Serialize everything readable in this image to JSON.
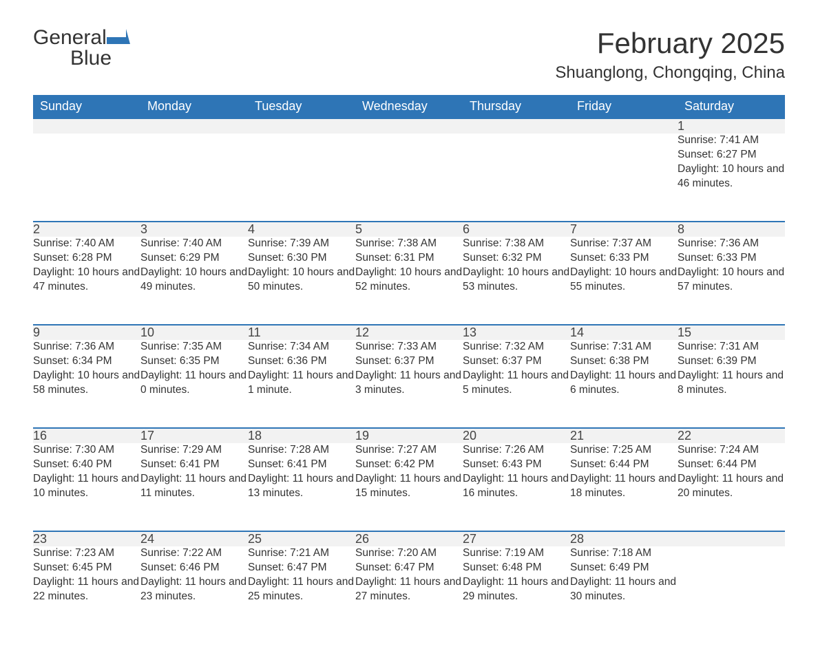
{
  "logo": {
    "text1": "General",
    "text2": "Blue"
  },
  "title": "February 2025",
  "subtitle": "Shuanglong, Chongqing, China",
  "colors": {
    "accent": "#2e75b6",
    "header_text": "#ffffff",
    "daynum_bg": "#f2f2f2",
    "body_text": "#333333",
    "page_bg": "#ffffff"
  },
  "layout": {
    "columns": 7,
    "rows": 5,
    "font_family": "Segoe UI, Arial, sans-serif",
    "title_fontsize": 42,
    "subtitle_fontsize": 24,
    "header_fontsize": 18,
    "daynum_fontsize": 18,
    "cell_fontsize": 15.5
  },
  "day_headers": [
    "Sunday",
    "Monday",
    "Tuesday",
    "Wednesday",
    "Thursday",
    "Friday",
    "Saturday"
  ],
  "weeks": [
    [
      null,
      null,
      null,
      null,
      null,
      null,
      {
        "day": "1",
        "sunrise": "Sunrise: 7:41 AM",
        "sunset": "Sunset: 6:27 PM",
        "daylight": "Daylight: 10 hours and 46 minutes."
      }
    ],
    [
      {
        "day": "2",
        "sunrise": "Sunrise: 7:40 AM",
        "sunset": "Sunset: 6:28 PM",
        "daylight": "Daylight: 10 hours and 47 minutes."
      },
      {
        "day": "3",
        "sunrise": "Sunrise: 7:40 AM",
        "sunset": "Sunset: 6:29 PM",
        "daylight": "Daylight: 10 hours and 49 minutes."
      },
      {
        "day": "4",
        "sunrise": "Sunrise: 7:39 AM",
        "sunset": "Sunset: 6:30 PM",
        "daylight": "Daylight: 10 hours and 50 minutes."
      },
      {
        "day": "5",
        "sunrise": "Sunrise: 7:38 AM",
        "sunset": "Sunset: 6:31 PM",
        "daylight": "Daylight: 10 hours and 52 minutes."
      },
      {
        "day": "6",
        "sunrise": "Sunrise: 7:38 AM",
        "sunset": "Sunset: 6:32 PM",
        "daylight": "Daylight: 10 hours and 53 minutes."
      },
      {
        "day": "7",
        "sunrise": "Sunrise: 7:37 AM",
        "sunset": "Sunset: 6:33 PM",
        "daylight": "Daylight: 10 hours and 55 minutes."
      },
      {
        "day": "8",
        "sunrise": "Sunrise: 7:36 AM",
        "sunset": "Sunset: 6:33 PM",
        "daylight": "Daylight: 10 hours and 57 minutes."
      }
    ],
    [
      {
        "day": "9",
        "sunrise": "Sunrise: 7:36 AM",
        "sunset": "Sunset: 6:34 PM",
        "daylight": "Daylight: 10 hours and 58 minutes."
      },
      {
        "day": "10",
        "sunrise": "Sunrise: 7:35 AM",
        "sunset": "Sunset: 6:35 PM",
        "daylight": "Daylight: 11 hours and 0 minutes."
      },
      {
        "day": "11",
        "sunrise": "Sunrise: 7:34 AM",
        "sunset": "Sunset: 6:36 PM",
        "daylight": "Daylight: 11 hours and 1 minute."
      },
      {
        "day": "12",
        "sunrise": "Sunrise: 7:33 AM",
        "sunset": "Sunset: 6:37 PM",
        "daylight": "Daylight: 11 hours and 3 minutes."
      },
      {
        "day": "13",
        "sunrise": "Sunrise: 7:32 AM",
        "sunset": "Sunset: 6:37 PM",
        "daylight": "Daylight: 11 hours and 5 minutes."
      },
      {
        "day": "14",
        "sunrise": "Sunrise: 7:31 AM",
        "sunset": "Sunset: 6:38 PM",
        "daylight": "Daylight: 11 hours and 6 minutes."
      },
      {
        "day": "15",
        "sunrise": "Sunrise: 7:31 AM",
        "sunset": "Sunset: 6:39 PM",
        "daylight": "Daylight: 11 hours and 8 minutes."
      }
    ],
    [
      {
        "day": "16",
        "sunrise": "Sunrise: 7:30 AM",
        "sunset": "Sunset: 6:40 PM",
        "daylight": "Daylight: 11 hours and 10 minutes."
      },
      {
        "day": "17",
        "sunrise": "Sunrise: 7:29 AM",
        "sunset": "Sunset: 6:41 PM",
        "daylight": "Daylight: 11 hours and 11 minutes."
      },
      {
        "day": "18",
        "sunrise": "Sunrise: 7:28 AM",
        "sunset": "Sunset: 6:41 PM",
        "daylight": "Daylight: 11 hours and 13 minutes."
      },
      {
        "day": "19",
        "sunrise": "Sunrise: 7:27 AM",
        "sunset": "Sunset: 6:42 PM",
        "daylight": "Daylight: 11 hours and 15 minutes."
      },
      {
        "day": "20",
        "sunrise": "Sunrise: 7:26 AM",
        "sunset": "Sunset: 6:43 PM",
        "daylight": "Daylight: 11 hours and 16 minutes."
      },
      {
        "day": "21",
        "sunrise": "Sunrise: 7:25 AM",
        "sunset": "Sunset: 6:44 PM",
        "daylight": "Daylight: 11 hours and 18 minutes."
      },
      {
        "day": "22",
        "sunrise": "Sunrise: 7:24 AM",
        "sunset": "Sunset: 6:44 PM",
        "daylight": "Daylight: 11 hours and 20 minutes."
      }
    ],
    [
      {
        "day": "23",
        "sunrise": "Sunrise: 7:23 AM",
        "sunset": "Sunset: 6:45 PM",
        "daylight": "Daylight: 11 hours and 22 minutes."
      },
      {
        "day": "24",
        "sunrise": "Sunrise: 7:22 AM",
        "sunset": "Sunset: 6:46 PM",
        "daylight": "Daylight: 11 hours and 23 minutes."
      },
      {
        "day": "25",
        "sunrise": "Sunrise: 7:21 AM",
        "sunset": "Sunset: 6:47 PM",
        "daylight": "Daylight: 11 hours and 25 minutes."
      },
      {
        "day": "26",
        "sunrise": "Sunrise: 7:20 AM",
        "sunset": "Sunset: 6:47 PM",
        "daylight": "Daylight: 11 hours and 27 minutes."
      },
      {
        "day": "27",
        "sunrise": "Sunrise: 7:19 AM",
        "sunset": "Sunset: 6:48 PM",
        "daylight": "Daylight: 11 hours and 29 minutes."
      },
      {
        "day": "28",
        "sunrise": "Sunrise: 7:18 AM",
        "sunset": "Sunset: 6:49 PM",
        "daylight": "Daylight: 11 hours and 30 minutes."
      },
      null
    ]
  ]
}
